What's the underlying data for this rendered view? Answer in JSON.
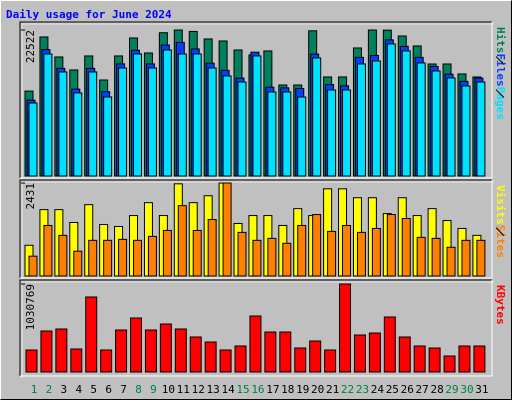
{
  "chart_data": {
    "type": "bar",
    "title": "Daily usage for June 2024",
    "categories": [
      "1",
      "2",
      "3",
      "4",
      "5",
      "6",
      "7",
      "8",
      "9",
      "10",
      "11",
      "12",
      "13",
      "14",
      "15",
      "16",
      "17",
      "18",
      "19",
      "20",
      "21",
      "22",
      "23",
      "24",
      "25",
      "26",
      "27",
      "28",
      "29",
      "30",
      "31"
    ],
    "category_colors": [
      "#008040",
      "#008040",
      "#000000",
      "#000000",
      "#000000",
      "#000000",
      "#000000",
      "#008040",
      "#008040",
      "#000000",
      "#000000",
      "#000000",
      "#000000",
      "#000000",
      "#008040",
      "#008040",
      "#000000",
      "#000000",
      "#000000",
      "#000000",
      "#000000",
      "#008040",
      "#008040",
      "#000000",
      "#000000",
      "#000000",
      "#000000",
      "#000000",
      "#008040",
      "#008040",
      "#000000"
    ],
    "panels": [
      {
        "ylim": [
          0,
          22522
        ],
        "yticks": [
          22522
        ],
        "series": [
          {
            "name": "Hits",
            "color": "#00805c",
            "values": [
              13100,
              21450,
              18360,
              16360,
              18520,
              14810,
              18520,
              21290,
              18980,
              22100,
              22522,
              22300,
              21140,
              20830,
              19440,
              18670,
              19290,
              14040,
              14040,
              22400,
              15280,
              15280,
              19750,
              22522,
              22500,
              21600,
              20060,
              17280,
              17280,
              15740,
              15280
            ]
          },
          {
            "name": "Files",
            "color": "#0040ff",
            "values": [
              11700,
              19500,
              16600,
              13400,
              16600,
              13000,
              17300,
              19400,
              17300,
              20200,
              20600,
              19600,
              17400,
              16300,
              15100,
              19100,
              13700,
              13600,
              13500,
              18800,
              14100,
              13900,
              18300,
              18600,
              21000,
              20000,
              18300,
              16900,
              15700,
              14600,
              15100
            ]
          },
          {
            "name": "Pages",
            "color": "#00e0ff",
            "values": [
              11260,
              18820,
              16050,
              12810,
              16050,
              12190,
              16660,
              18820,
              16660,
              19440,
              18820,
              18820,
              16660,
              15430,
              14500,
              18520,
              12960,
              12960,
              12190,
              18210,
              13270,
              13270,
              17280,
              17740,
              20370,
              19290,
              17440,
              16200,
              15120,
              13890,
              14500
            ]
          }
        ]
      },
      {
        "ylim": [
          0,
          2431
        ],
        "yticks": [
          2431
        ],
        "series": [
          {
            "name": "Visits",
            "color": "#ffff00",
            "values": [
              803,
              1735,
              1735,
              1399,
              1865,
              1347,
              1295,
              1580,
              1917,
              1580,
              2409,
              1917,
              2098,
              2431,
              1373,
              1580,
              1580,
              1321,
              1761,
              1580,
              2279,
              2279,
              2046,
              2046,
              1632,
              2046,
              1580,
              1761,
              1450,
              1243,
              1062
            ]
          },
          {
            "name": "Sites",
            "color": "#ff8000",
            "values": [
              518,
              1321,
              1062,
              648,
              932,
              932,
              958,
              932,
              1036,
              1191,
              1839,
              1191,
              1476,
              2431,
              1140,
              932,
              984,
              855,
              1321,
              1606,
              1166,
              1321,
              1140,
              1243,
              1606,
              1502,
              1010,
              984,
              751,
              932,
              932
            ]
          }
        ]
      },
      {
        "ylim": [
          0,
          1030769
        ],
        "yticks": [
          1030769
        ],
        "series": [
          {
            "name": "KBytes",
            "color": "#ff0000",
            "values": [
              257700,
              480200,
              503700,
              269400,
              878500,
              257700,
              491900,
              632500,
              491900,
              562200,
              503700,
              410000,
              351400,
              257700,
              304500,
              655900,
              468500,
              468500,
              281100,
              363100,
              257700,
              1030769,
              433400,
              456800,
              644200,
              410000,
              304500,
              281100,
              187400,
              304500,
              304500
            ]
          }
        ]
      }
    ]
  }
}
